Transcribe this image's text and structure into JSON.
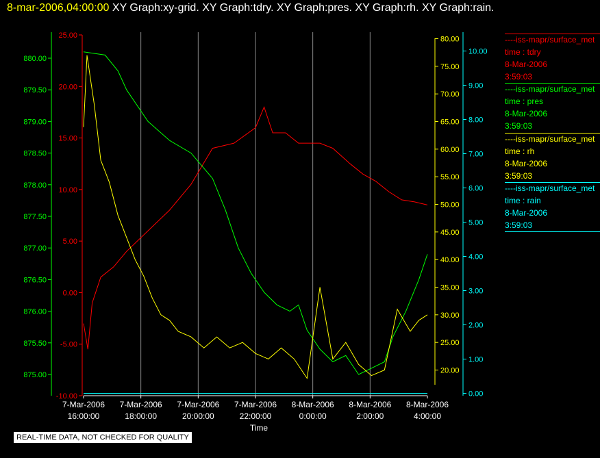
{
  "header": {
    "timestamp": "8-mar-2006,04:00:00",
    "graphs": "XY Graph:xy-grid.  XY Graph:tdry.  XY Graph:pres.  XY Graph:rh.  XY Graph:rain."
  },
  "footer": {
    "notice": "REAL-TIME DATA, NOT CHECKED FOR QUALITY"
  },
  "chart_data": {
    "type": "line",
    "xlabel": "Time",
    "x_ticks": [
      {
        "date": "7-Mar-2006",
        "time": "16:00:00"
      },
      {
        "date": "7-Mar-2006",
        "time": "18:00:00"
      },
      {
        "date": "7-Mar-2006",
        "time": "20:00:00"
      },
      {
        "date": "7-Mar-2006",
        "time": "22:00:00"
      },
      {
        "date": "8-Mar-2006",
        "time": "0:00:00"
      },
      {
        "date": "8-Mar-2006",
        "time": "2:00:00"
      },
      {
        "date": "8-Mar-2006",
        "time": "4:00:00"
      }
    ],
    "x_range_hours": [
      -8,
      0
    ],
    "grid": "vertical",
    "axes": [
      {
        "id": "tdry",
        "color": "#ff0000",
        "range": [
          -10,
          25
        ],
        "ticks": [
          "-10.00",
          "-5.00",
          "0.00",
          "5.00",
          "10.00",
          "15.00",
          "20.00",
          "25.00"
        ]
      },
      {
        "id": "pres",
        "color": "#00ff00",
        "range": [
          874.7,
          880.4
        ],
        "ticks": [
          "875.00",
          "875.50",
          "876.00",
          "876.50",
          "877.00",
          "877.50",
          "878.00",
          "878.50",
          "879.00",
          "879.50",
          "880.00"
        ]
      },
      {
        "id": "rh",
        "color": "#ffff00",
        "range": [
          15,
          80
        ],
        "ticks": [
          "20.00",
          "25.00",
          "30.00",
          "35.00",
          "40.00",
          "45.00",
          "50.00",
          "55.00",
          "60.00",
          "65.00",
          "70.00",
          "75.00",
          "80.00"
        ]
      },
      {
        "id": "rain",
        "color": "#00ffff",
        "range": [
          -0.1,
          10.3
        ],
        "ticks": [
          "0.00",
          "1.00",
          "2.00",
          "3.00",
          "4.00",
          "5.00",
          "6.00",
          "7.00",
          "8.00",
          "9.00",
          "10.00"
        ]
      }
    ],
    "series": [
      {
        "id": "tdry",
        "axis": "tdry",
        "color": "#ff0000",
        "points": [
          [
            -8,
            -3
          ],
          [
            -7.9,
            -5.5
          ],
          [
            -7.8,
            -1
          ],
          [
            -7.6,
            1.5
          ],
          [
            -7.3,
            2.5
          ],
          [
            -7,
            4
          ],
          [
            -6.5,
            6
          ],
          [
            -6,
            8
          ],
          [
            -5.5,
            10.5
          ],
          [
            -5,
            14
          ],
          [
            -4.5,
            14.5
          ],
          [
            -4,
            16
          ],
          [
            -3.8,
            18
          ],
          [
            -3.6,
            15.5
          ],
          [
            -3.3,
            15.5
          ],
          [
            -3,
            14.5
          ],
          [
            -2.5,
            14.5
          ],
          [
            -2.2,
            14
          ],
          [
            -1.8,
            12.5
          ],
          [
            -1.5,
            11.5
          ],
          [
            -1.2,
            10.8
          ],
          [
            -0.9,
            9.8
          ],
          [
            -0.6,
            9
          ],
          [
            -0.3,
            8.8
          ],
          [
            0,
            8.5
          ]
        ]
      },
      {
        "id": "pres",
        "axis": "pres",
        "color": "#00ff00",
        "points": [
          [
            -8,
            880.1
          ],
          [
            -7.5,
            880.05
          ],
          [
            -7.2,
            879.8
          ],
          [
            -7,
            879.5
          ],
          [
            -6.5,
            879.0
          ],
          [
            -6,
            878.7
          ],
          [
            -5.5,
            878.5
          ],
          [
            -5,
            878.1
          ],
          [
            -4.7,
            877.6
          ],
          [
            -4.4,
            877.0
          ],
          [
            -4.1,
            876.6
          ],
          [
            -3.8,
            876.3
          ],
          [
            -3.5,
            876.1
          ],
          [
            -3.2,
            876.0
          ],
          [
            -3.0,
            876.1
          ],
          [
            -2.8,
            875.7
          ],
          [
            -2.5,
            875.4
          ],
          [
            -2.2,
            875.2
          ],
          [
            -1.9,
            875.3
          ],
          [
            -1.6,
            875.0
          ],
          [
            -1.3,
            875.1
          ],
          [
            -1.0,
            875.2
          ],
          [
            -0.8,
            875.6
          ],
          [
            -0.5,
            876.0
          ],
          [
            -0.2,
            876.5
          ],
          [
            0,
            876.9
          ]
        ]
      },
      {
        "id": "rh",
        "axis": "rh",
        "color": "#ffff00",
        "points": [
          [
            -8,
            64
          ],
          [
            -7.92,
            77
          ],
          [
            -7.75,
            68
          ],
          [
            -7.6,
            58
          ],
          [
            -7.4,
            54
          ],
          [
            -7.2,
            48
          ],
          [
            -7,
            44
          ],
          [
            -6.8,
            40
          ],
          [
            -6.6,
            37
          ],
          [
            -6.4,
            33
          ],
          [
            -6.2,
            30
          ],
          [
            -6,
            29
          ],
          [
            -5.8,
            27
          ],
          [
            -5.5,
            26
          ],
          [
            -5.2,
            24
          ],
          [
            -4.9,
            26
          ],
          [
            -4.6,
            24
          ],
          [
            -4.3,
            25
          ],
          [
            -4.0,
            23
          ],
          [
            -3.7,
            22
          ],
          [
            -3.4,
            24
          ],
          [
            -3.1,
            22
          ],
          [
            -2.8,
            18.5
          ],
          [
            -2.5,
            35
          ],
          [
            -2.2,
            22
          ],
          [
            -1.9,
            25
          ],
          [
            -1.6,
            21
          ],
          [
            -1.3,
            19
          ],
          [
            -1.0,
            20
          ],
          [
            -0.7,
            31
          ],
          [
            -0.4,
            27
          ],
          [
            -0.2,
            29
          ],
          [
            0,
            30
          ]
        ]
      },
      {
        "id": "rain",
        "axis": "rain",
        "color": "#00ffff",
        "points": [
          [
            -8,
            0
          ],
          [
            0,
            0
          ]
        ]
      }
    ],
    "legend": [
      {
        "color": "#ff0000",
        "source": "----iss-mapr/surface_met",
        "label": "time : tdry",
        "date": "8-Mar-2006",
        "time": "3:59:03"
      },
      {
        "color": "#00ff00",
        "source": "----iss-mapr/surface_met",
        "label": "time : pres",
        "date": "8-Mar-2006",
        "time": "3:59:03"
      },
      {
        "color": "#ffff00",
        "source": "----iss-mapr/surface_met",
        "label": "time : rh",
        "date": "8-Mar-2006",
        "time": "3:59:03"
      },
      {
        "color": "#00ffff",
        "source": "----iss-mapr/surface_met",
        "label": "time : rain",
        "date": "8-Mar-2006",
        "time": "3:59:03"
      }
    ]
  }
}
